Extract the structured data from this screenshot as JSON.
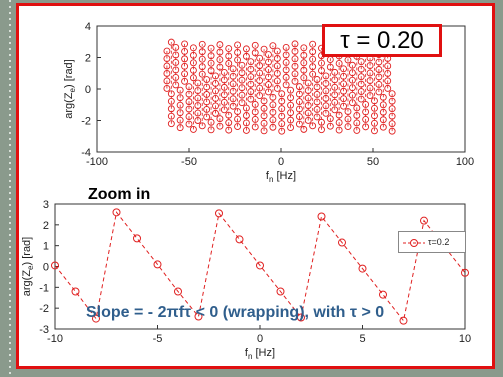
{
  "annotations": {
    "tau_box": "τ = 0.20",
    "zoom_label": "Zoom in",
    "slope_text": "Slope = - 2πfτ < 0 (wrapping), with τ > 0"
  },
  "colors": {
    "series": "#e02020",
    "frame": "#e01010",
    "slope_text": "#2f5e8c"
  },
  "chart_data": [
    {
      "type": "scatter",
      "title": "",
      "xlabel": "f_n [Hz]",
      "ylabel": "arg(Z_e) [rad]",
      "xlim": [
        -100,
        100
      ],
      "ylim": [
        -4,
        4
      ],
      "xticks": [
        "-100",
        "-50",
        "0",
        "50",
        "100"
      ],
      "yticks": [
        "4",
        "2",
        "0",
        "-2",
        "-4"
      ],
      "grid": false,
      "series": [
        {
          "marker": "circle",
          "line": "dashed",
          "x_range": [
            -62,
            62
          ],
          "x_step": 2.4,
          "values_pattern": "sawtooth wrapping between about -2.6 and 3.0 rad, columns of circles",
          "slope_per_hz": -1.2566,
          "wrap_period_hz": 5
        }
      ]
    },
    {
      "type": "line",
      "title": "",
      "xlabel": "f_n [Hz]",
      "ylabel": "arg(Z_e) [rad]",
      "xlim": [
        -10,
        10
      ],
      "ylim": [
        -3,
        3
      ],
      "xticks": [
        "-10",
        "-5",
        "0",
        "5",
        "10"
      ],
      "yticks": [
        "3",
        "2",
        "1",
        "0",
        "-1",
        "-2",
        "-3"
      ],
      "grid": false,
      "legend_position": "top-right",
      "series": [
        {
          "name": "τ=0.2",
          "marker": "circle",
          "line": "dashed",
          "x": [
            -10,
            -9,
            -8,
            -7,
            -6,
            -5,
            -4,
            -3,
            -2,
            -1,
            0,
            1,
            2,
            3,
            4,
            5,
            6,
            7,
            8,
            9,
            10
          ],
          "y": [
            0.05,
            -1.2,
            -2.5,
            2.6,
            1.35,
            0.1,
            -1.2,
            -2.4,
            2.55,
            1.3,
            0.05,
            -1.2,
            -2.45,
            2.4,
            1.15,
            -0.1,
            -1.35,
            -2.6,
            2.2,
            0.95,
            -0.3
          ]
        }
      ]
    }
  ]
}
